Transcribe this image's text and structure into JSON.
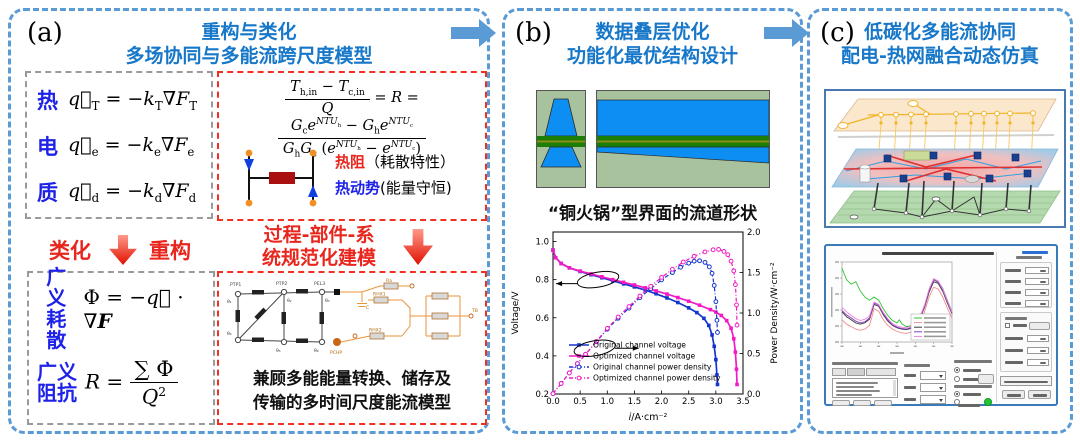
{
  "colors": {
    "panel_border": "#5b9bd5",
    "title_blue": "#1777c8",
    "accent_red": "#e8261d",
    "label_blue": "#1e22e8",
    "curve_blue": "#1535cc",
    "curve_magenta": "#f31ac4",
    "channel_bg_green": "#a9c29e",
    "channel_blue": "#0d8ef2",
    "channel_green": "#1b7e07",
    "resistor_dark_red": "#aa1010",
    "node_orange": "#f09020"
  },
  "panel_a": {
    "label": "(a)",
    "title1": "重构与类化",
    "title2": "多场协同与多能流跨尺度模型",
    "flux_rows": [
      {
        "name": "热",
        "eq": "<i>q⃗</i><sub>T</sub> = −<i>k</i><sub>T</sub>∇<i>F</i><sub>T</sub>"
      },
      {
        "name": "电",
        "eq": "<i>q⃗</i><sub>e</sub> = −<i>k</i><sub>e</sub>∇<i>F</i><sub>e</sub>"
      },
      {
        "name": "质",
        "eq": "<i>q⃗</i><sub>d</sub> = −<i>k</i><sub>d</sub>∇<i>F</i><sub>d</sub>"
      }
    ],
    "r_equation": {
      "num1": "<i>T</i><sub>h,in</sub> − <i>T</i><sub>c,in</sub>",
      "den1": "<i>Q</i>",
      "mid": "= <i>R</i> =",
      "num2": "<i>G</i><sub>c</sub><i>e</i><sup><i>NTU</i><sub>h</sub></sup> − <i>G</i><sub>h</sub><i>e</i><sup><i>NTU</i><sub>c</sub></sup>",
      "den2": "<i>G</i><sub>h</sub><i>G</i><sub>c</sub> (<i>e</i><sup><i>NTU</i><sub>h</sub></sup> − <i>e</i><sup><i>NTU</i><sub>c</sub></sup>)"
    },
    "r_legend": [
      {
        "term": "热阻",
        "note": "（耗散特性）"
      },
      {
        "term": "热动势",
        "note": "(能量守恒)"
      }
    ],
    "arrow_row": {
      "left_a": "类化",
      "left_b": "重构",
      "right1": "过程-部件-系",
      "right2": "统规范化建模"
    },
    "general_rows": [
      {
        "name1": "广义",
        "name2": "耗散",
        "eq": "Φ = −<i>q⃗</i> · ∇<b><i>F</i></b>"
      },
      {
        "name1": "广义",
        "name2": "阻抗",
        "lhs": "<i>R</i> =",
        "num": "∑ Φ",
        "den": "<i>Q</i><sup>2</sup>"
      }
    ],
    "model_caption1": "兼顾多能能量转换、储存及",
    "model_caption2": "传输的多时间尺度能流模型",
    "circuit_labels": [
      "PTP1",
      "PTP2",
      "PEL3",
      "θ₁",
      "θ₂",
      "θ₃",
      "θ₄",
      "θ₅",
      "θ₆",
      "Ra",
      "C",
      "RHX1",
      "RHX2",
      "PCHP",
      "TB"
    ]
  },
  "panel_b": {
    "label": "(b)",
    "title1": "数据叠层优化",
    "title2": "功能化最优结构设计",
    "caption": "“铜火锅”型界面的流道形状",
    "chart_data": {
      "type": "line",
      "xlabel": "i/A·cm⁻²",
      "ylabel_left": "Voltage/V",
      "ylabel_right": "Power Density/W·cm⁻²",
      "xlim": [
        0,
        3.5
      ],
      "ylim_left": [
        0.2,
        1.05
      ],
      "ylim_right": [
        0.0,
        2.0
      ],
      "xticks": [
        0.0,
        0.5,
        1.0,
        1.5,
        2.0,
        2.5,
        3.0,
        3.5
      ],
      "yticks_left": [
        0.2,
        0.4,
        0.6,
        0.8,
        1.0
      ],
      "yticks_right": [
        0.0,
        0.5,
        1.0,
        1.5,
        2.0
      ],
      "grid": false,
      "legend_position": "inside lower-left",
      "series": [
        {
          "name": "Original channel voltage",
          "axis": "left",
          "color": "#1535cc",
          "style": "solid",
          "marker": "square",
          "points": [
            [
              0,
              0.955
            ],
            [
              0.05,
              0.915
            ],
            [
              0.15,
              0.885
            ],
            [
              0.3,
              0.862
            ],
            [
              0.5,
              0.843
            ],
            [
              0.7,
              0.826
            ],
            [
              0.9,
              0.81
            ],
            [
              1.1,
              0.794
            ],
            [
              1.3,
              0.778
            ],
            [
              1.5,
              0.762
            ],
            [
              1.7,
              0.745
            ],
            [
              1.9,
              0.726
            ],
            [
              2.1,
              0.704
            ],
            [
              2.3,
              0.68
            ],
            [
              2.5,
              0.652
            ],
            [
              2.65,
              0.627
            ],
            [
              2.78,
              0.597
            ],
            [
              2.87,
              0.56
            ],
            [
              2.93,
              0.51
            ],
            [
              2.97,
              0.45
            ],
            [
              3.0,
              0.38
            ],
            [
              3.02,
              0.3
            ],
            [
              3.03,
              0.25
            ]
          ]
        },
        {
          "name": "Optimized channel voltage",
          "axis": "left",
          "color": "#f31ac4",
          "style": "solid",
          "marker": "square",
          "points": [
            [
              0,
              0.955
            ],
            [
              0.05,
              0.915
            ],
            [
              0.15,
              0.885
            ],
            [
              0.3,
              0.862
            ],
            [
              0.5,
              0.845
            ],
            [
              0.7,
              0.83
            ],
            [
              0.9,
              0.815
            ],
            [
              1.1,
              0.8
            ],
            [
              1.3,
              0.786
            ],
            [
              1.5,
              0.772
            ],
            [
              1.7,
              0.757
            ],
            [
              1.9,
              0.741
            ],
            [
              2.1,
              0.724
            ],
            [
              2.3,
              0.706
            ],
            [
              2.5,
              0.687
            ],
            [
              2.7,
              0.666
            ],
            [
              2.9,
              0.643
            ],
            [
              3.0,
              0.63
            ],
            [
              3.1,
              0.612
            ],
            [
              3.2,
              0.585
            ],
            [
              3.28,
              0.545
            ],
            [
              3.33,
              0.49
            ],
            [
              3.36,
              0.42
            ],
            [
              3.38,
              0.33
            ],
            [
              3.39,
              0.25
            ]
          ]
        },
        {
          "name": "Original channel power density",
          "axis": "right",
          "color": "#1535cc",
          "style": "dashdot",
          "marker": "circle-open",
          "points": [
            [
              0,
              0.005
            ],
            [
              0.15,
              0.13
            ],
            [
              0.3,
              0.26
            ],
            [
              0.45,
              0.375
            ],
            [
              0.6,
              0.49
            ],
            [
              0.8,
              0.645
            ],
            [
              1.0,
              0.8
            ],
            [
              1.2,
              0.935
            ],
            [
              1.4,
              1.06
            ],
            [
              1.6,
              1.19
            ],
            [
              1.8,
              1.3
            ],
            [
              2.0,
              1.41
            ],
            [
              2.2,
              1.5
            ],
            [
              2.35,
              1.565
            ],
            [
              2.5,
              1.615
            ],
            [
              2.6,
              1.64
            ],
            [
              2.7,
              1.645
            ],
            [
              2.8,
              1.625
            ],
            [
              2.88,
              1.57
            ],
            [
              2.93,
              1.49
            ],
            [
              2.97,
              1.34
            ],
            [
              3.0,
              1.14
            ],
            [
              3.02,
              0.91
            ],
            [
              3.03,
              0.76
            ]
          ]
        },
        {
          "name": "Optimized channel power density",
          "axis": "right",
          "color": "#f31ac4",
          "style": "dashdot",
          "marker": "circle-open",
          "points": [
            [
              0,
              0.005
            ],
            [
              0.15,
              0.13
            ],
            [
              0.3,
              0.26
            ],
            [
              0.45,
              0.375
            ],
            [
              0.6,
              0.49
            ],
            [
              0.8,
              0.65
            ],
            [
              1.0,
              0.81
            ],
            [
              1.2,
              0.95
            ],
            [
              1.4,
              1.08
            ],
            [
              1.6,
              1.21
            ],
            [
              1.8,
              1.33
            ],
            [
              2.0,
              1.44
            ],
            [
              2.2,
              1.54
            ],
            [
              2.4,
              1.63
            ],
            [
              2.6,
              1.7
            ],
            [
              2.8,
              1.755
            ],
            [
              2.95,
              1.78
            ],
            [
              3.05,
              1.785
            ],
            [
              3.15,
              1.76
            ],
            [
              3.22,
              1.72
            ],
            [
              3.28,
              1.64
            ],
            [
              3.33,
              1.52
            ],
            [
              3.36,
              1.35
            ],
            [
              3.38,
              1.1
            ],
            [
              3.39,
              0.85
            ]
          ]
        }
      ],
      "annotations": [
        {
          "shape": "ellipse",
          "x": 0.83,
          "y": 0.8,
          "arrow": "left"
        },
        {
          "shape": "ellipse",
          "x": 0.77,
          "y": 0.44,
          "arrow": "right"
        }
      ]
    }
  },
  "panel_c": {
    "label": "(c)",
    "title1": "低碳化多能流协同",
    "title2": "配电-热网融合动态仿真",
    "sim_chart": {
      "type": "line",
      "x_range": [
        0,
        24
      ],
      "y_range": [
        50,
        310
      ],
      "series": [
        {
          "name": "green",
          "color": "#2ec42e",
          "points": [
            [
              0,
              290
            ],
            [
              1,
              252
            ],
            [
              2,
              238
            ],
            [
              3,
              246
            ],
            [
              4,
              216
            ],
            [
              5,
              196
            ],
            [
              6,
              186
            ],
            [
              7,
              196
            ],
            [
              8,
              186
            ],
            [
              9,
              158
            ],
            [
              10,
              136
            ],
            [
              11,
              120
            ],
            [
              12,
              112
            ],
            [
              12.5,
              122
            ],
            [
              13,
              110
            ],
            [
              14,
              100
            ],
            [
              15,
              102
            ],
            [
              16,
              110
            ],
            [
              17,
              130
            ],
            [
              18,
              165
            ],
            [
              19,
              220
            ],
            [
              20,
              255
            ],
            [
              21,
              246
            ],
            [
              22,
              224
            ],
            [
              23,
              186
            ],
            [
              24,
              148
            ]
          ]
        },
        {
          "name": "salmon",
          "color": "#f28c8c",
          "points": [
            [
              0,
              122
            ],
            [
              1,
              108
            ],
            [
              2,
              100
            ],
            [
              3,
              92
            ],
            [
              4,
              88
            ],
            [
              5,
              92
            ],
            [
              6,
              104
            ],
            [
              7,
              158
            ],
            [
              8,
              150
            ],
            [
              9,
              122
            ],
            [
              10,
              104
            ],
            [
              11,
              92
            ],
            [
              12,
              84
            ],
            [
              13,
              80
            ],
            [
              14,
              78
            ],
            [
              15,
              82
            ],
            [
              16,
              92
            ],
            [
              17,
              112
            ],
            [
              18,
              148
            ],
            [
              19,
              196
            ],
            [
              20,
              228
            ],
            [
              21,
              222
            ],
            [
              22,
              196
            ],
            [
              23,
              160
            ],
            [
              24,
              128
            ]
          ]
        },
        {
          "name": "black",
          "color": "#3a3a3a",
          "points": [
            [
              0,
              148
            ],
            [
              1,
              132
            ],
            [
              2,
              122
            ],
            [
              3,
              112
            ],
            [
              4,
              108
            ],
            [
              5,
              112
            ],
            [
              6,
              124
            ],
            [
              7,
              172
            ],
            [
              8,
              166
            ],
            [
              9,
              138
            ],
            [
              10,
              118
            ],
            [
              11,
              104
            ],
            [
              12,
              96
            ],
            [
              13,
              92
            ],
            [
              14,
              90
            ],
            [
              15,
              94
            ],
            [
              16,
              104
            ],
            [
              17,
              126
            ],
            [
              18,
              162
            ],
            [
              19,
              212
            ],
            [
              20,
              246
            ],
            [
              21,
              240
            ],
            [
              22,
              214
            ],
            [
              23,
              176
            ],
            [
              24,
              142
            ]
          ]
        },
        {
          "name": "violet",
          "color": "#8040c0",
          "points": [
            [
              0,
              152
            ],
            [
              1,
              138
            ],
            [
              2,
              128
            ],
            [
              3,
              118
            ],
            [
              4,
              112
            ],
            [
              5,
              116
            ],
            [
              6,
              128
            ],
            [
              7,
              176
            ],
            [
              8,
              170
            ],
            [
              9,
              142
            ],
            [
              10,
              122
            ],
            [
              11,
              106
            ],
            [
              12,
              98
            ],
            [
              13,
              94
            ],
            [
              14,
              92
            ],
            [
              15,
              96
            ],
            [
              16,
              106
            ],
            [
              17,
              128
            ],
            [
              18,
              166
            ],
            [
              19,
              218
            ],
            [
              20,
              252
            ],
            [
              21,
              244
            ],
            [
              22,
              218
            ],
            [
              23,
              180
            ],
            [
              24,
              144
            ]
          ]
        },
        {
          "name": "pink",
          "color": "#f080e0",
          "points": [
            [
              0,
              162
            ],
            [
              1,
              148
            ],
            [
              2,
              136
            ],
            [
              3,
              126
            ],
            [
              4,
              120
            ],
            [
              5,
              124
            ],
            [
              6,
              134
            ],
            [
              7,
              180
            ],
            [
              8,
              172
            ],
            [
              9,
              146
            ],
            [
              10,
              126
            ],
            [
              11,
              110
            ],
            [
              12,
              102
            ],
            [
              13,
              98
            ],
            [
              14,
              96
            ],
            [
              15,
              100
            ],
            [
              16,
              110
            ],
            [
              17,
              132
            ],
            [
              18,
              170
            ],
            [
              19,
              222
            ],
            [
              20,
              256
            ],
            [
              21,
              248
            ],
            [
              22,
              222
            ],
            [
              23,
              184
            ],
            [
              24,
              148
            ]
          ]
        }
      ]
    }
  }
}
